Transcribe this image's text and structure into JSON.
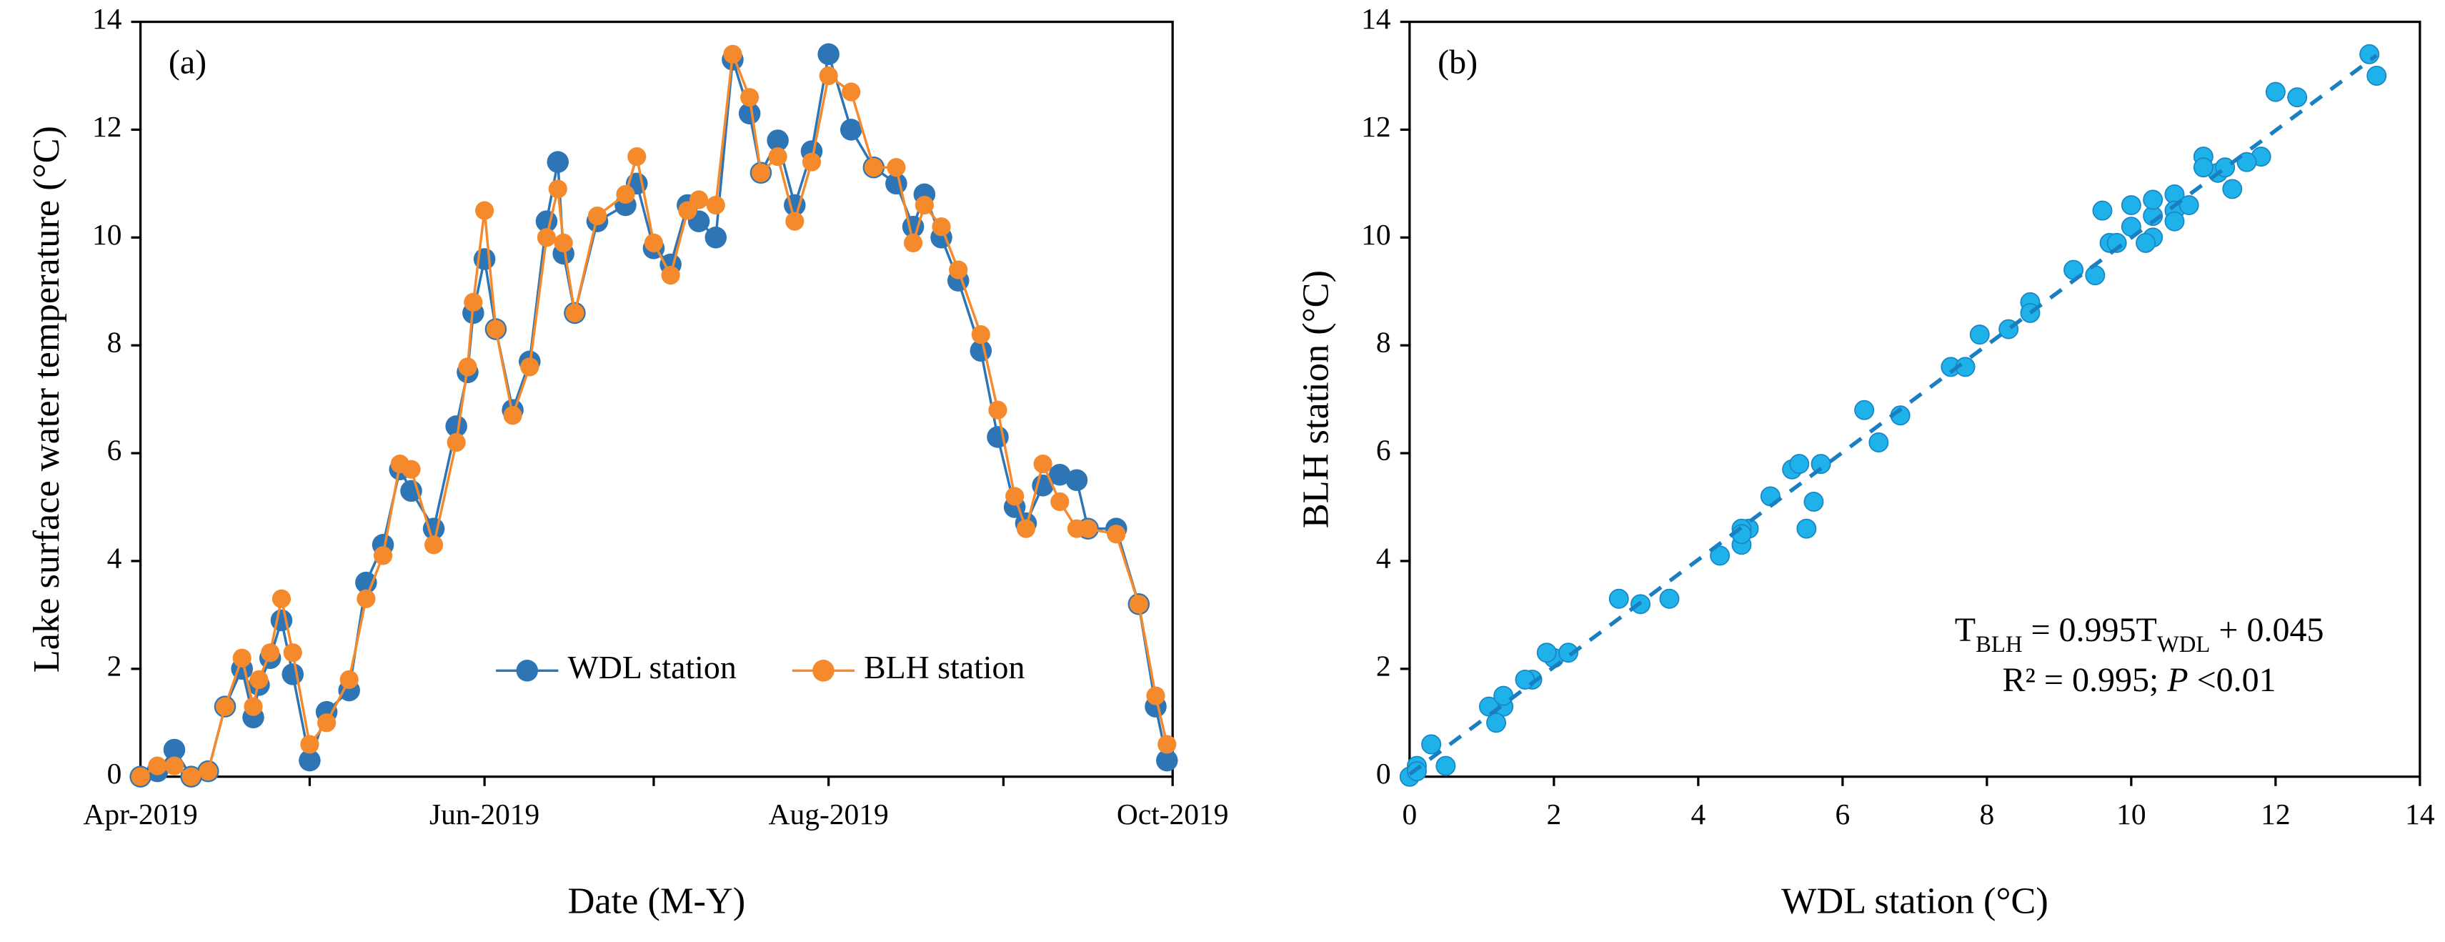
{
  "chart_data": [
    {
      "type": "line",
      "panel_label": "(a)",
      "x_label": "Date (M-Y)",
      "y_label": "Lake surface water temperature (°C)",
      "x": [
        0,
        3,
        6,
        9,
        12,
        15,
        18,
        20,
        21,
        23,
        25,
        27,
        30,
        33,
        37,
        40,
        43,
        46,
        48,
        52,
        56,
        58,
        59,
        61,
        63,
        66,
        69,
        72,
        74,
        75,
        77,
        81,
        86,
        88,
        91,
        94,
        97,
        99,
        102,
        105,
        108,
        110,
        113,
        116,
        119,
        122,
        126,
        130,
        134,
        137,
        139,
        142,
        145,
        149,
        152,
        155,
        157,
        160,
        163,
        166,
        168,
        173,
        177,
        180,
        182
      ],
      "series": [
        {
          "name": "WDL station",
          "color": "#2e75b6",
          "values": [
            0,
            0.1,
            0.5,
            0,
            0.1,
            1.3,
            2.0,
            1.1,
            1.7,
            2.2,
            2.9,
            1.9,
            0.3,
            1.2,
            1.6,
            3.6,
            4.3,
            5.7,
            5.3,
            4.6,
            6.5,
            7.5,
            8.6,
            9.6,
            8.3,
            6.8,
            7.7,
            10.3,
            11.4,
            9.7,
            8.6,
            10.3,
            10.6,
            11.0,
            9.8,
            9.5,
            10.6,
            10.3,
            10.0,
            13.3,
            12.3,
            11.2,
            11.8,
            10.6,
            11.6,
            13.4,
            12.0,
            11.3,
            11.0,
            10.2,
            10.8,
            10.0,
            9.2,
            7.9,
            6.3,
            5.0,
            4.7,
            5.4,
            5.6,
            5.5,
            4.6,
            4.6,
            3.2,
            1.3,
            0.3
          ]
        },
        {
          "name": "BLH station",
          "color": "#f58a2c",
          "values": [
            0,
            0.2,
            0.2,
            0,
            0.1,
            1.3,
            2.2,
            1.3,
            1.8,
            2.3,
            3.3,
            2.3,
            0.6,
            1.0,
            1.8,
            3.3,
            4.1,
            5.8,
            5.7,
            4.3,
            6.2,
            7.6,
            8.8,
            10.5,
            8.3,
            6.7,
            7.6,
            10.0,
            10.9,
            9.9,
            8.6,
            10.4,
            10.8,
            11.5,
            9.9,
            9.3,
            10.5,
            10.7,
            10.6,
            13.4,
            12.6,
            11.2,
            11.5,
            10.3,
            11.4,
            13.0,
            12.7,
            11.3,
            11.3,
            9.9,
            10.6,
            10.2,
            9.4,
            8.2,
            6.8,
            5.2,
            4.6,
            5.8,
            5.1,
            4.6,
            4.6,
            4.5,
            3.2,
            1.5,
            0.6
          ]
        }
      ],
      "xlim": [
        0,
        183
      ],
      "xticks": [
        {
          "value": 0,
          "label": "Apr-2019"
        },
        {
          "value": 61,
          "label": "Jun-2019"
        },
        {
          "value": 122,
          "label": "Aug-2019"
        },
        {
          "value": 183,
          "label": "Oct-2019"
        }
      ],
      "minor_xticks": [
        30,
        91,
        153
      ],
      "ylim": [
        0,
        14
      ],
      "yticks": [
        0,
        2,
        4,
        6,
        8,
        10,
        12,
        14
      ],
      "legend": "bottom"
    },
    {
      "type": "scatter",
      "panel_label": "(b)",
      "x_label": "WDL station (°C)",
      "y_label": "BLH station (°C)",
      "color": "#1fb2ea",
      "edge_color": "#1a86c4",
      "fit_color": "#1a7fc1",
      "x": [
        0,
        0.1,
        0.5,
        0,
        0.1,
        1.3,
        2.0,
        1.1,
        1.7,
        2.2,
        2.9,
        1.9,
        0.3,
        1.2,
        1.6,
        3.6,
        4.3,
        5.7,
        5.3,
        4.6,
        6.5,
        7.5,
        8.6,
        9.6,
        8.3,
        6.8,
        7.7,
        10.3,
        11.4,
        9.7,
        8.6,
        10.3,
        10.6,
        11.0,
        9.8,
        9.5,
        10.6,
        10.3,
        10.0,
        13.3,
        12.3,
        11.2,
        11.8,
        10.6,
        11.6,
        13.4,
        12.0,
        11.3,
        11.0,
        10.2,
        10.8,
        10.0,
        9.2,
        7.9,
        6.3,
        5.0,
        4.7,
        5.4,
        5.6,
        5.5,
        4.6,
        4.6,
        3.2,
        1.3,
        0.3
      ],
      "y": [
        0,
        0.2,
        0.2,
        0,
        0.1,
        1.3,
        2.2,
        1.3,
        1.8,
        2.3,
        3.3,
        2.3,
        0.6,
        1.0,
        1.8,
        3.3,
        4.1,
        5.8,
        5.7,
        4.3,
        6.2,
        7.6,
        8.8,
        10.5,
        8.3,
        6.7,
        7.6,
        10.0,
        10.9,
        9.9,
        8.6,
        10.4,
        10.8,
        11.5,
        9.9,
        9.3,
        10.5,
        10.7,
        10.6,
        13.4,
        12.6,
        11.2,
        11.5,
        10.3,
        11.4,
        13.0,
        12.7,
        11.3,
        11.3,
        9.9,
        10.6,
        10.2,
        9.4,
        8.2,
        6.8,
        5.2,
        4.6,
        5.8,
        5.1,
        4.6,
        4.6,
        4.5,
        3.2,
        1.5,
        0.6
      ],
      "fit": {
        "slope": 0.995,
        "intercept": 0.045
      },
      "equation": [
        {
          "text": "T"
        },
        {
          "text": "BLH",
          "sub": true
        },
        {
          "text": " = 0.995T"
        },
        {
          "text": "WDL",
          "sub": true
        },
        {
          "text": " + 0.045"
        }
      ],
      "stats": [
        {
          "text": "R² = 0.995; "
        },
        {
          "text": "P",
          "italic": true
        },
        {
          "text": " <0.01"
        }
      ],
      "xlim": [
        0,
        14
      ],
      "xticks": [
        0,
        2,
        4,
        6,
        8,
        10,
        12,
        14
      ],
      "ylim": [
        0,
        14
      ],
      "yticks": [
        0,
        2,
        4,
        6,
        8,
        10,
        12,
        14
      ]
    }
  ]
}
